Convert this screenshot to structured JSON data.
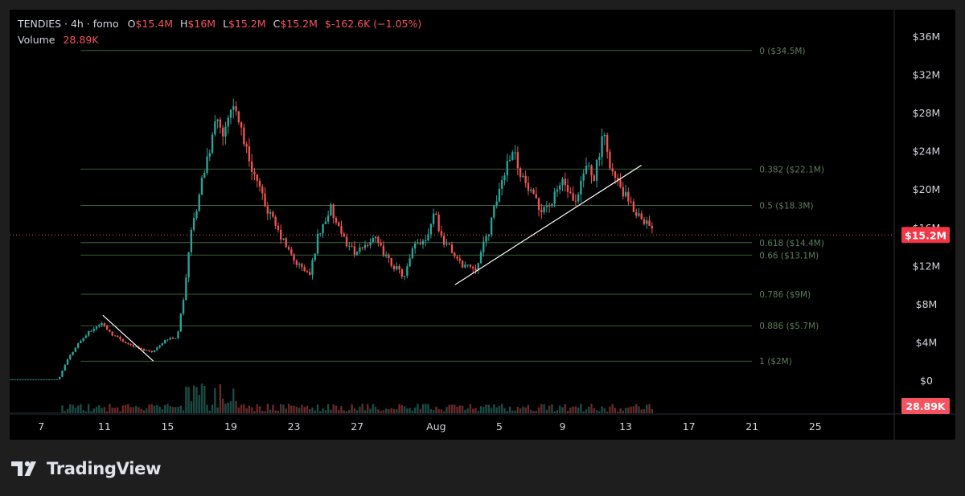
{
  "legend": {
    "symbol": "TENDIES · 4h · fomo",
    "o_label": "O",
    "o_value": "$15.4M",
    "h_label": "H",
    "h_value": "$16M",
    "l_label": "L",
    "l_value": "$15.2M",
    "c_label": "C",
    "c_value": "$15.2M",
    "change": "$-162.6K (−1.05%)",
    "volume_label": "Volume",
    "volume_value": "28.89K"
  },
  "branding": {
    "logo_text": "TradingView"
  },
  "colors": {
    "up": "#26a69a",
    "down": "#ef5350",
    "price_label_bg": "#f23645",
    "volume_label_bg": "#f7525f",
    "fib_line": "#4a7a4a",
    "trendline": "#ffffff",
    "axis_text": "#d1d4dc",
    "fib_text": "#5d7d5d"
  },
  "chart_data": {
    "type": "candlestick",
    "interval": "4h",
    "y_axis": {
      "unit": "USD market cap",
      "ticks": [
        "$0",
        "$4M",
        "$8M",
        "$12M",
        "$16M",
        "$20M",
        "$24M",
        "$28M",
        "$32M",
        "$36M"
      ],
      "tick_values": [
        0,
        4,
        8,
        12,
        16,
        20,
        24,
        28,
        32,
        36
      ],
      "range": [
        0,
        37.5
      ]
    },
    "x_axis": {
      "ticks": [
        "7",
        "11",
        "15",
        "19",
        "23",
        "27",
        "Aug",
        "5",
        "9",
        "13",
        "17",
        "21",
        "25"
      ],
      "tick_days": [
        7,
        11,
        15,
        19,
        23,
        27,
        32,
        36,
        40,
        44,
        48,
        52,
        56
      ],
      "day_range": [
        5.0,
        61.0
      ],
      "note": "days counted from July 1; Aug 1 = day 32"
    },
    "last_price": {
      "label": "$15.2M",
      "value": 15.2
    },
    "last_volume": {
      "label": "28.89K"
    },
    "fibonacci": [
      {
        "label": "0 ($34.5M)",
        "value": 34.5
      },
      {
        "label": "0.382 ($22.1M)",
        "value": 22.1
      },
      {
        "label": "0.5 ($18.3M)",
        "value": 18.3
      },
      {
        "label": "0.618 ($14.4M)",
        "value": 14.4
      },
      {
        "label": "0.66 ($13.1M)",
        "value": 13.1
      },
      {
        "label": "0.786 ($9M)",
        "value": 9.0
      },
      {
        "label": "0.886 ($5.7M)",
        "value": 5.7
      },
      {
        "label": "1 ($2M)",
        "value": 2.0
      }
    ],
    "fib_day_range": [
      9.5,
      52.0
    ],
    "trendlines": [
      {
        "from": {
          "day": 10.9,
          "value": 6.8
        },
        "to": {
          "day": 14.1,
          "value": 2.0
        }
      },
      {
        "from": {
          "day": 33.2,
          "value": 10.0
        },
        "to": {
          "day": 45.0,
          "value": 22.5
        }
      }
    ],
    "price_keypoints": [
      [
        5.0,
        0.1
      ],
      [
        8.1,
        0.1
      ],
      [
        8.6,
        2.0
      ],
      [
        9.3,
        3.8
      ],
      [
        10.0,
        5.0
      ],
      [
        10.8,
        6.0
      ],
      [
        11.5,
        4.8
      ],
      [
        12.5,
        3.8
      ],
      [
        13.4,
        3.2
      ],
      [
        14.1,
        3.0
      ],
      [
        14.8,
        4.2
      ],
      [
        15.6,
        4.5
      ],
      [
        16.0,
        8.5
      ],
      [
        16.5,
        15.5
      ],
      [
        17.0,
        19.5
      ],
      [
        17.5,
        23.0
      ],
      [
        18.1,
        27.0
      ],
      [
        18.6,
        26.0
      ],
      [
        19.0,
        29.0
      ],
      [
        19.5,
        27.5
      ],
      [
        20.0,
        24.0
      ],
      [
        20.5,
        21.5
      ],
      [
        21.0,
        19.0
      ],
      [
        22.0,
        15.5
      ],
      [
        23.0,
        12.5
      ],
      [
        24.0,
        11.0
      ],
      [
        24.5,
        15.0
      ],
      [
        25.3,
        18.0
      ],
      [
        26.0,
        15.0
      ],
      [
        27.0,
        13.2
      ],
      [
        28.0,
        15.0
      ],
      [
        29.0,
        12.5
      ],
      [
        30.0,
        10.8
      ],
      [
        30.6,
        14.0
      ],
      [
        31.4,
        15.0
      ],
      [
        31.9,
        18.0
      ],
      [
        32.3,
        15.0
      ],
      [
        33.0,
        13.5
      ],
      [
        33.5,
        12.2
      ],
      [
        34.5,
        11.8
      ],
      [
        35.4,
        16.0
      ],
      [
        36.0,
        20.0
      ],
      [
        36.8,
        24.5
      ],
      [
        37.3,
        22.0
      ],
      [
        37.8,
        20.0
      ],
      [
        38.5,
        18.0
      ],
      [
        39.3,
        18.5
      ],
      [
        40.0,
        21.0
      ],
      [
        40.8,
        18.0
      ],
      [
        41.5,
        22.5
      ],
      [
        42.0,
        21.5
      ],
      [
        42.6,
        25.5
      ],
      [
        43.2,
        21.5
      ],
      [
        43.7,
        20.0
      ],
      [
        44.4,
        18.0
      ],
      [
        45.2,
        16.8
      ],
      [
        45.8,
        15.2
      ]
    ],
    "volume_note": "volume bars in thousands; last bar = 28.89K"
  }
}
